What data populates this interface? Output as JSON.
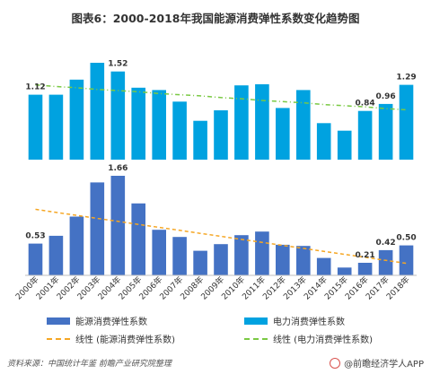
{
  "title": "图表6：2000-2018年我国能源消费弹性系数变化趋势图",
  "source": "资料来源：中国统计年鉴 前瞻产业研究院整理",
  "brand": "@前瞻经济学人APP",
  "colors": {
    "energy": "#4472c4",
    "electric": "#00a2e0",
    "energy_trend": "#f5a623",
    "electric_trend": "#7ac943"
  },
  "chart_data": [
    {
      "type": "bar",
      "categories": [
        "2000年",
        "2001年",
        "2002年",
        "2003年",
        "2004年",
        "2005年",
        "2006年",
        "2007年",
        "2008年",
        "2009年",
        "2010年",
        "2011年",
        "2012年",
        "2013年",
        "2014年",
        "2015年",
        "2016年",
        "2017年",
        "2018年"
      ],
      "series": [
        {
          "name": "电力消费弹性系数",
          "values": [
            1.12,
            1.12,
            1.38,
            1.67,
            1.52,
            1.24,
            1.2,
            1.0,
            0.67,
            0.85,
            1.28,
            1.3,
            0.89,
            1.2,
            0.63,
            0.5,
            0.84,
            0.96,
            1.29
          ]
        },
        {
          "name": "线性 (电力消费弹性系数)",
          "values": [
            1.29,
            1.26,
            1.24,
            1.21,
            1.19,
            1.17,
            1.14,
            1.12,
            1.1,
            1.07,
            1.05,
            1.02,
            1.0,
            0.98,
            0.95,
            0.93,
            0.91,
            0.88,
            0.86
          ]
        }
      ],
      "data_labels": {
        "2000年": "1.12",
        "2004年": "1.52",
        "2016年": "0.84",
        "2017年": "0.96",
        "2018年": "1.29"
      }
    },
    {
      "type": "bar",
      "categories": [
        "2000年",
        "2001年",
        "2002年",
        "2003年",
        "2004年",
        "2005年",
        "2006年",
        "2007年",
        "2008年",
        "2009年",
        "2010年",
        "2011年",
        "2012年",
        "2013年",
        "2014年",
        "2015年",
        "2016年",
        "2017年",
        "2018年"
      ],
      "series": [
        {
          "name": "能源消费弹性系数",
          "values": [
            0.53,
            0.66,
            0.98,
            1.55,
            1.66,
            1.2,
            0.76,
            0.64,
            0.41,
            0.52,
            0.67,
            0.73,
            0.51,
            0.49,
            0.29,
            0.13,
            0.21,
            0.42,
            0.5
          ]
        },
        {
          "name": "线性 (能源消费弹性系数)",
          "values": [
            1.1,
            1.05,
            1.0,
            0.95,
            0.9,
            0.85,
            0.8,
            0.75,
            0.7,
            0.65,
            0.6,
            0.55,
            0.5,
            0.45,
            0.4,
            0.35,
            0.3,
            0.25,
            0.2
          ]
        }
      ],
      "data_labels": {
        "2000年": "0.53",
        "2004年": "1.66",
        "2016年": "0.21",
        "2017年": "0.42",
        "2018年": "0.50"
      }
    }
  ],
  "legend": {
    "energy": "能源消费弹性系数",
    "electric": "电力消费弹性系数",
    "energy_trend": "线性 (能源消费弹性系数)",
    "electric_trend": "线性 (电力消费弹性系数)"
  }
}
